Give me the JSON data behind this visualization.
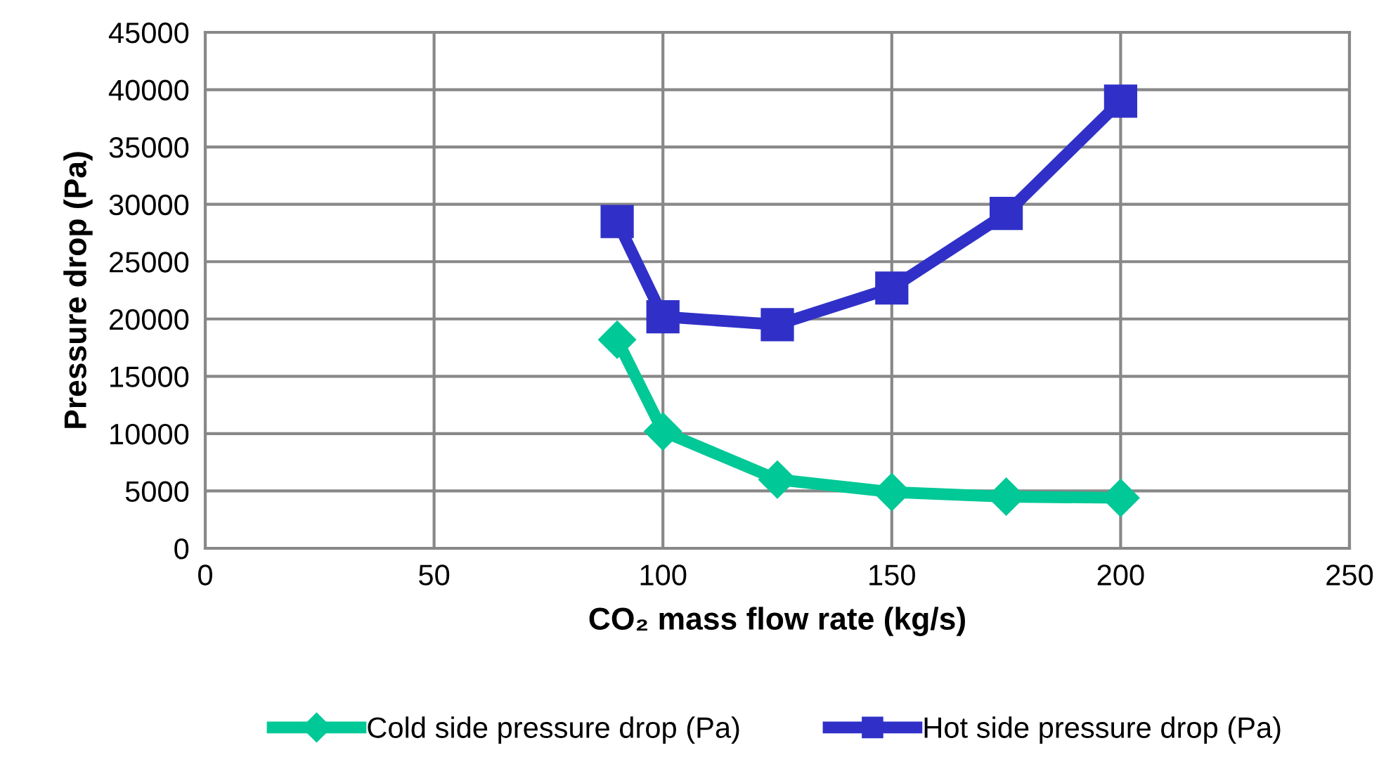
{
  "chart_data": {
    "type": "line",
    "xlabel": "CO₂ mass flow rate (kg/s)",
    "ylabel": "Pressure drop (Pa)",
    "x": [
      90,
      100,
      125,
      150,
      175,
      200
    ],
    "series": [
      {
        "name": "Cold side pressure drop (Pa)",
        "color": "#00c896",
        "marker": "diamond",
        "values": [
          18200,
          10200,
          6000,
          4900,
          4500,
          4400
        ]
      },
      {
        "name": "Hot side pressure drop (Pa)",
        "color": "#3030c8",
        "marker": "square",
        "values": [
          28500,
          20200,
          19500,
          22700,
          29200,
          39000
        ]
      }
    ],
    "xlim": [
      0,
      250
    ],
    "xticks": [
      0,
      50,
      100,
      150,
      200,
      250
    ],
    "ylim": [
      0,
      45000
    ],
    "yticks": [
      0,
      5000,
      10000,
      15000,
      20000,
      25000,
      30000,
      35000,
      40000,
      45000
    ],
    "grid": true,
    "legend": "bottom",
    "line_style": "solid"
  }
}
